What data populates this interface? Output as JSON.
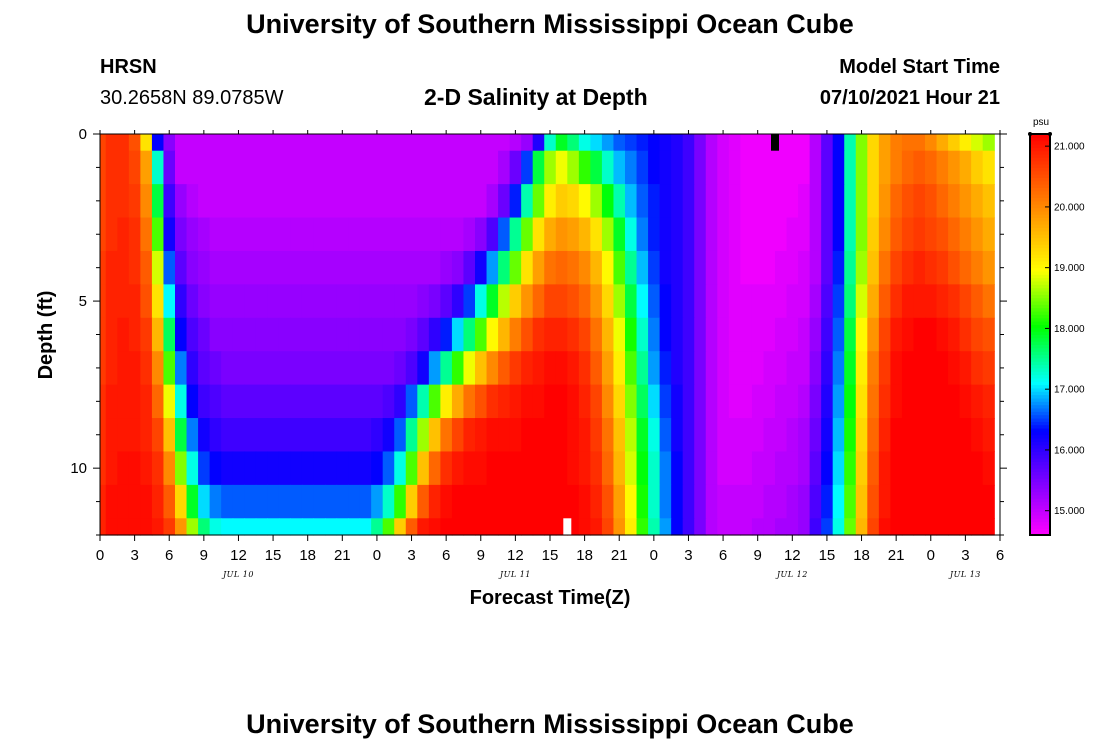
{
  "header": {
    "title_top": "University of Southern Mississippi Ocean Cube",
    "title_bottom": "University of Southern Mississippi Ocean Cube",
    "station": "HRSN",
    "coords": "30.2658N  89.0785W",
    "plot_title": "2-D Salinity at Depth",
    "model_start_label": "Model Start Time",
    "model_start_value": "07/10/2021 Hour 21"
  },
  "chart_data": {
    "type": "heatmap",
    "title": "2-D Salinity at Depth",
    "xlabel": "Forecast Time(Z)",
    "ylabel": "Depth (ft)",
    "units": "psu",
    "x_hours_range": [
      0,
      78
    ],
    "ylim": [
      0,
      12
    ],
    "y_ticks": [
      "0",
      "5",
      "10"
    ],
    "x_tick_labels": [
      "0",
      "3",
      "6",
      "9",
      "12",
      "15",
      "18",
      "21",
      "0",
      "3",
      "6",
      "9",
      "12",
      "15",
      "18",
      "21",
      "0",
      "3",
      "6",
      "9",
      "12",
      "15",
      "18",
      "21",
      "0",
      "3",
      "6"
    ],
    "date_labels": [
      {
        "label": "JUL 10",
        "hour": 12
      },
      {
        "label": "JUL 11",
        "hour": 36
      },
      {
        "label": "JUL 12",
        "hour": 60
      },
      {
        "label": "JUL 13",
        "hour": 75
      }
    ],
    "colorbar": {
      "min": 14.6,
      "max": 21.2,
      "tick_labels": [
        "15.000",
        "16.000",
        "17.000",
        "18.000",
        "19.000",
        "20.000",
        "21.000"
      ]
    },
    "markers": [
      {
        "hour": 58.5,
        "depth_from": 0,
        "depth_to": 0.5,
        "color": "#000000"
      },
      {
        "hour": 40.5,
        "depth_from": 11.5,
        "depth_to": 12,
        "color": "#ffffff"
      }
    ],
    "depth_rows": [
      0,
      1,
      2,
      3,
      4,
      5,
      6,
      7,
      8,
      9,
      10,
      11,
      12
    ],
    "hour_step": 1,
    "salinity_grid": [
      [
        20.6,
        20.8,
        20.8,
        20.5,
        19.2,
        16.3,
        15.4,
        15.0,
        15.0,
        15.0,
        15.0,
        15.0,
        15.0,
        15.0,
        15.0,
        15.0,
        15.0,
        15.0,
        15.0,
        15.0,
        15.0,
        15.0,
        15.0,
        15.0,
        15.0,
        15.0,
        15.0,
        15.0,
        15.0,
        15.0,
        15.0,
        15.0,
        15.0,
        15.0,
        15.0,
        15.0,
        15.1,
        15.3,
        16.1,
        17.3,
        17.9,
        17.6,
        17.2,
        17.0,
        16.8,
        16.6,
        16.5,
        16.4,
        16.3,
        16.2,
        16.1,
        15.9,
        15.5,
        15.1,
        14.9,
        14.8,
        14.7,
        14.7,
        14.7,
        14.7,
        14.7,
        14.7,
        15.1,
        15.7,
        16.3,
        17.4,
        18.5,
        19.3,
        19.8,
        20.1,
        20.2,
        20.2,
        20.0,
        19.7,
        19.4,
        19.1,
        18.8,
        18.6
      ],
      [
        20.6,
        20.8,
        20.8,
        20.6,
        19.8,
        17.3,
        15.6,
        15.0,
        15.0,
        15.0,
        15.0,
        15.0,
        15.0,
        15.0,
        15.0,
        15.0,
        15.0,
        15.0,
        15.0,
        15.0,
        15.0,
        15.0,
        15.0,
        15.0,
        15.0,
        15.0,
        15.0,
        15.0,
        15.0,
        15.0,
        15.0,
        15.0,
        15.0,
        15.0,
        15.0,
        15.2,
        15.6,
        16.5,
        17.8,
        18.6,
        18.9,
        18.6,
        18.2,
        17.8,
        17.3,
        16.9,
        16.7,
        16.5,
        16.3,
        16.2,
        16.1,
        15.9,
        15.5,
        15.1,
        14.9,
        14.8,
        14.7,
        14.7,
        14.7,
        14.7,
        14.7,
        14.7,
        15.1,
        15.7,
        16.3,
        17.4,
        18.5,
        19.3,
        19.8,
        20.1,
        20.3,
        20.4,
        20.3,
        20.1,
        19.9,
        19.7,
        19.4,
        19.2
      ],
      [
        20.6,
        20.8,
        20.8,
        20.7,
        20.0,
        17.8,
        15.9,
        15.3,
        15.1,
        15.0,
        15.0,
        15.0,
        15.0,
        15.0,
        15.0,
        15.0,
        15.0,
        15.0,
        15.0,
        15.0,
        15.0,
        15.0,
        15.0,
        15.0,
        15.0,
        15.0,
        15.0,
        15.0,
        15.0,
        15.0,
        15.0,
        15.0,
        15.0,
        15.0,
        15.2,
        15.6,
        16.4,
        17.4,
        18.4,
        19.1,
        19.4,
        19.3,
        19.0,
        18.6,
        18.0,
        17.4,
        16.9,
        16.6,
        16.4,
        16.2,
        16.1,
        15.9,
        15.5,
        15.1,
        14.9,
        14.8,
        14.7,
        14.7,
        14.7,
        14.7,
        14.7,
        14.8,
        15.1,
        15.7,
        16.3,
        17.4,
        18.5,
        19.3,
        19.9,
        20.3,
        20.5,
        20.6,
        20.5,
        20.3,
        20.1,
        19.9,
        19.7,
        19.5
      ],
      [
        20.6,
        20.8,
        20.9,
        20.8,
        20.2,
        18.3,
        16.2,
        15.5,
        15.3,
        15.2,
        15.1,
        15.1,
        15.1,
        15.1,
        15.1,
        15.1,
        15.1,
        15.1,
        15.1,
        15.1,
        15.1,
        15.1,
        15.1,
        15.1,
        15.1,
        15.1,
        15.1,
        15.1,
        15.1,
        15.1,
        15.1,
        15.1,
        15.2,
        15.4,
        15.8,
        16.6,
        17.5,
        18.4,
        19.2,
        19.7,
        19.9,
        19.8,
        19.6,
        19.2,
        18.6,
        17.9,
        17.2,
        16.7,
        16.4,
        16.2,
        16.1,
        15.9,
        15.5,
        15.1,
        14.9,
        14.8,
        14.7,
        14.7,
        14.7,
        14.7,
        14.8,
        14.8,
        15.1,
        15.7,
        16.3,
        17.4,
        18.5,
        19.4,
        20.0,
        20.4,
        20.6,
        20.7,
        20.6,
        20.5,
        20.3,
        20.1,
        19.9,
        19.7
      ],
      [
        20.7,
        20.9,
        20.9,
        20.8,
        20.4,
        18.8,
        16.6,
        15.7,
        15.4,
        15.3,
        15.2,
        15.2,
        15.2,
        15.2,
        15.2,
        15.2,
        15.2,
        15.2,
        15.2,
        15.2,
        15.2,
        15.2,
        15.2,
        15.2,
        15.2,
        15.2,
        15.2,
        15.2,
        15.2,
        15.2,
        15.3,
        15.4,
        15.7,
        16.2,
        16.8,
        17.6,
        18.4,
        19.2,
        19.8,
        20.2,
        20.3,
        20.2,
        20.0,
        19.6,
        19.0,
        18.3,
        17.5,
        16.9,
        16.5,
        16.2,
        16.1,
        15.9,
        15.5,
        15.1,
        14.9,
        14.8,
        14.7,
        14.7,
        14.7,
        14.8,
        14.8,
        14.9,
        15.1,
        15.7,
        16.4,
        17.5,
        18.6,
        19.5,
        20.2,
        20.6,
        20.8,
        20.9,
        20.8,
        20.7,
        20.5,
        20.3,
        20.1,
        19.9
      ],
      [
        20.7,
        20.9,
        20.9,
        20.9,
        20.5,
        19.2,
        17.1,
        16.0,
        15.6,
        15.4,
        15.3,
        15.3,
        15.3,
        15.3,
        15.3,
        15.3,
        15.3,
        15.3,
        15.3,
        15.3,
        15.3,
        15.3,
        15.3,
        15.3,
        15.3,
        15.3,
        15.3,
        15.3,
        15.4,
        15.5,
        15.7,
        16.0,
        16.5,
        17.2,
        17.9,
        18.7,
        19.4,
        19.9,
        20.3,
        20.6,
        20.6,
        20.5,
        20.3,
        19.9,
        19.3,
        18.6,
        17.8,
        17.1,
        16.6,
        16.3,
        16.1,
        15.9,
        15.5,
        15.1,
        14.9,
        14.8,
        14.8,
        14.8,
        14.8,
        14.8,
        14.9,
        14.9,
        15.2,
        15.8,
        16.5,
        17.6,
        18.8,
        19.7,
        20.4,
        20.8,
        21.0,
        21.0,
        21.0,
        20.9,
        20.8,
        20.6,
        20.4,
        20.2
      ],
      [
        20.7,
        20.9,
        21.0,
        20.9,
        20.7,
        19.6,
        17.7,
        16.3,
        15.8,
        15.6,
        15.4,
        15.4,
        15.4,
        15.4,
        15.4,
        15.4,
        15.4,
        15.4,
        15.4,
        15.4,
        15.4,
        15.4,
        15.4,
        15.4,
        15.4,
        15.4,
        15.4,
        15.5,
        15.7,
        16.0,
        16.4,
        17.0,
        17.6,
        18.3,
        19.0,
        19.6,
        20.1,
        20.5,
        20.8,
        20.9,
        20.9,
        20.8,
        20.6,
        20.2,
        19.6,
        18.9,
        18.1,
        17.3,
        16.7,
        16.3,
        16.1,
        15.9,
        15.5,
        15.1,
        14.9,
        14.8,
        14.8,
        14.8,
        14.8,
        14.9,
        14.9,
        15.0,
        15.3,
        15.9,
        16.6,
        17.8,
        19.0,
        19.9,
        20.6,
        21.0,
        21.1,
        21.2,
        21.2,
        21.1,
        21.0,
        20.8,
        20.6,
        20.5
      ],
      [
        20.7,
        20.9,
        21.0,
        21.0,
        20.8,
        20.0,
        18.3,
        16.7,
        16.0,
        15.7,
        15.6,
        15.5,
        15.5,
        15.5,
        15.5,
        15.5,
        15.5,
        15.5,
        15.5,
        15.5,
        15.5,
        15.5,
        15.5,
        15.5,
        15.5,
        15.5,
        15.6,
        15.8,
        16.2,
        16.8,
        17.5,
        18.2,
        18.9,
        19.5,
        20.0,
        20.4,
        20.7,
        20.9,
        21.0,
        21.1,
        21.1,
        21.0,
        20.8,
        20.4,
        19.8,
        19.1,
        18.3,
        17.5,
        16.8,
        16.4,
        16.1,
        15.9,
        15.5,
        15.1,
        14.9,
        14.8,
        14.8,
        14.8,
        14.9,
        14.9,
        15.0,
        15.0,
        15.4,
        16.0,
        16.7,
        17.9,
        19.1,
        20.1,
        20.7,
        21.1,
        21.2,
        21.2,
        21.2,
        21.2,
        21.1,
        21.0,
        20.8,
        20.7
      ],
      [
        20.8,
        21.0,
        21.0,
        21.0,
        20.9,
        20.3,
        18.9,
        17.2,
        16.3,
        15.9,
        15.8,
        15.7,
        15.7,
        15.7,
        15.7,
        15.7,
        15.7,
        15.7,
        15.7,
        15.7,
        15.7,
        15.7,
        15.7,
        15.7,
        15.7,
        15.8,
        16.0,
        16.6,
        17.4,
        18.3,
        19.1,
        19.7,
        20.2,
        20.5,
        20.8,
        20.9,
        21.0,
        21.1,
        21.1,
        21.2,
        21.2,
        21.1,
        20.9,
        20.6,
        20.0,
        19.3,
        18.5,
        17.7,
        17.0,
        16.5,
        16.2,
        15.9,
        15.5,
        15.1,
        14.9,
        14.8,
        14.8,
        14.9,
        14.9,
        15.0,
        15.0,
        15.1,
        15.5,
        16.1,
        16.8,
        18.0,
        19.2,
        20.2,
        20.8,
        21.1,
        21.2,
        21.2,
        21.2,
        21.2,
        21.2,
        21.1,
        21.0,
        20.9
      ],
      [
        20.8,
        21.0,
        21.0,
        21.0,
        20.9,
        20.6,
        19.5,
        17.8,
        16.7,
        16.2,
        16.0,
        15.9,
        15.9,
        15.9,
        15.9,
        15.9,
        15.9,
        15.9,
        15.9,
        15.9,
        15.9,
        15.9,
        15.9,
        15.9,
        16.0,
        16.2,
        16.6,
        17.5,
        18.6,
        19.5,
        20.2,
        20.6,
        20.9,
        21.0,
        21.1,
        21.1,
        21.1,
        21.2,
        21.2,
        21.2,
        21.2,
        21.1,
        21.0,
        20.7,
        20.2,
        19.5,
        18.7,
        17.9,
        17.2,
        16.6,
        16.2,
        15.9,
        15.5,
        15.1,
        14.9,
        14.9,
        14.9,
        14.9,
        15.0,
        15.0,
        15.1,
        15.2,
        15.6,
        16.2,
        16.9,
        18.1,
        19.3,
        20.3,
        20.9,
        21.2,
        21.2,
        21.2,
        21.2,
        21.2,
        21.2,
        21.2,
        21.1,
        21.0
      ],
      [
        20.8,
        21.0,
        21.1,
        21.1,
        21.0,
        20.8,
        20.0,
        18.5,
        17.2,
        16.5,
        16.3,
        16.2,
        16.2,
        16.2,
        16.2,
        16.2,
        16.2,
        16.2,
        16.2,
        16.2,
        16.2,
        16.2,
        16.2,
        16.2,
        16.3,
        16.6,
        17.2,
        18.3,
        19.5,
        20.3,
        20.8,
        21.0,
        21.1,
        21.1,
        21.2,
        21.2,
        21.2,
        21.2,
        21.2,
        21.2,
        21.2,
        21.1,
        21.0,
        20.8,
        20.3,
        19.6,
        18.8,
        18.0,
        17.3,
        16.7,
        16.3,
        15.9,
        15.5,
        15.1,
        14.9,
        14.9,
        14.9,
        15.0,
        15.0,
        15.1,
        15.1,
        15.2,
        15.7,
        16.3,
        17.0,
        18.2,
        19.4,
        20.4,
        21.0,
        21.2,
        21.2,
        21.2,
        21.2,
        21.2,
        21.2,
        21.2,
        21.2,
        21.1
      ],
      [
        20.9,
        21.1,
        21.1,
        21.1,
        21.1,
        20.9,
        20.4,
        19.3,
        17.9,
        17.0,
        16.7,
        16.6,
        16.6,
        16.6,
        16.6,
        16.6,
        16.6,
        16.6,
        16.6,
        16.6,
        16.6,
        16.6,
        16.6,
        16.6,
        16.8,
        17.3,
        18.2,
        19.4,
        20.4,
        20.9,
        21.1,
        21.2,
        21.2,
        21.2,
        21.2,
        21.2,
        21.2,
        21.2,
        21.2,
        21.2,
        21.2,
        21.2,
        21.1,
        20.9,
        20.5,
        19.8,
        19.0,
        18.1,
        17.3,
        16.7,
        16.3,
        15.9,
        15.5,
        15.1,
        15.0,
        15.0,
        15.0,
        15.0,
        15.1,
        15.1,
        15.2,
        15.3,
        15.8,
        16.4,
        17.1,
        18.3,
        19.5,
        20.5,
        21.0,
        21.2,
        21.2,
        21.2,
        21.2,
        21.2,
        21.2,
        21.2,
        21.2,
        21.2
      ],
      [
        20.9,
        21.1,
        21.1,
        21.1,
        21.1,
        21.0,
        20.7,
        19.9,
        18.6,
        17.6,
        17.2,
        17.1,
        17.1,
        17.1,
        17.1,
        17.1,
        17.1,
        17.1,
        17.1,
        17.1,
        17.1,
        17.1,
        17.1,
        17.1,
        17.5,
        18.3,
        19.4,
        20.4,
        21.0,
        21.1,
        21.2,
        21.2,
        21.2,
        21.2,
        21.2,
        21.2,
        21.2,
        21.2,
        21.2,
        21.2,
        21.2,
        21.2,
        21.1,
        21.0,
        20.6,
        19.9,
        19.1,
        18.2,
        17.4,
        16.8,
        16.3,
        15.9,
        15.5,
        15.1,
        15.0,
        15.0,
        15.0,
        15.1,
        15.1,
        15.2,
        15.2,
        15.3,
        15.9,
        16.5,
        17.2,
        18.4,
        19.6,
        20.6,
        21.1,
        21.2,
        21.2,
        21.2,
        21.2,
        21.2,
        21.2,
        21.2,
        21.2,
        21.2
      ]
    ]
  }
}
